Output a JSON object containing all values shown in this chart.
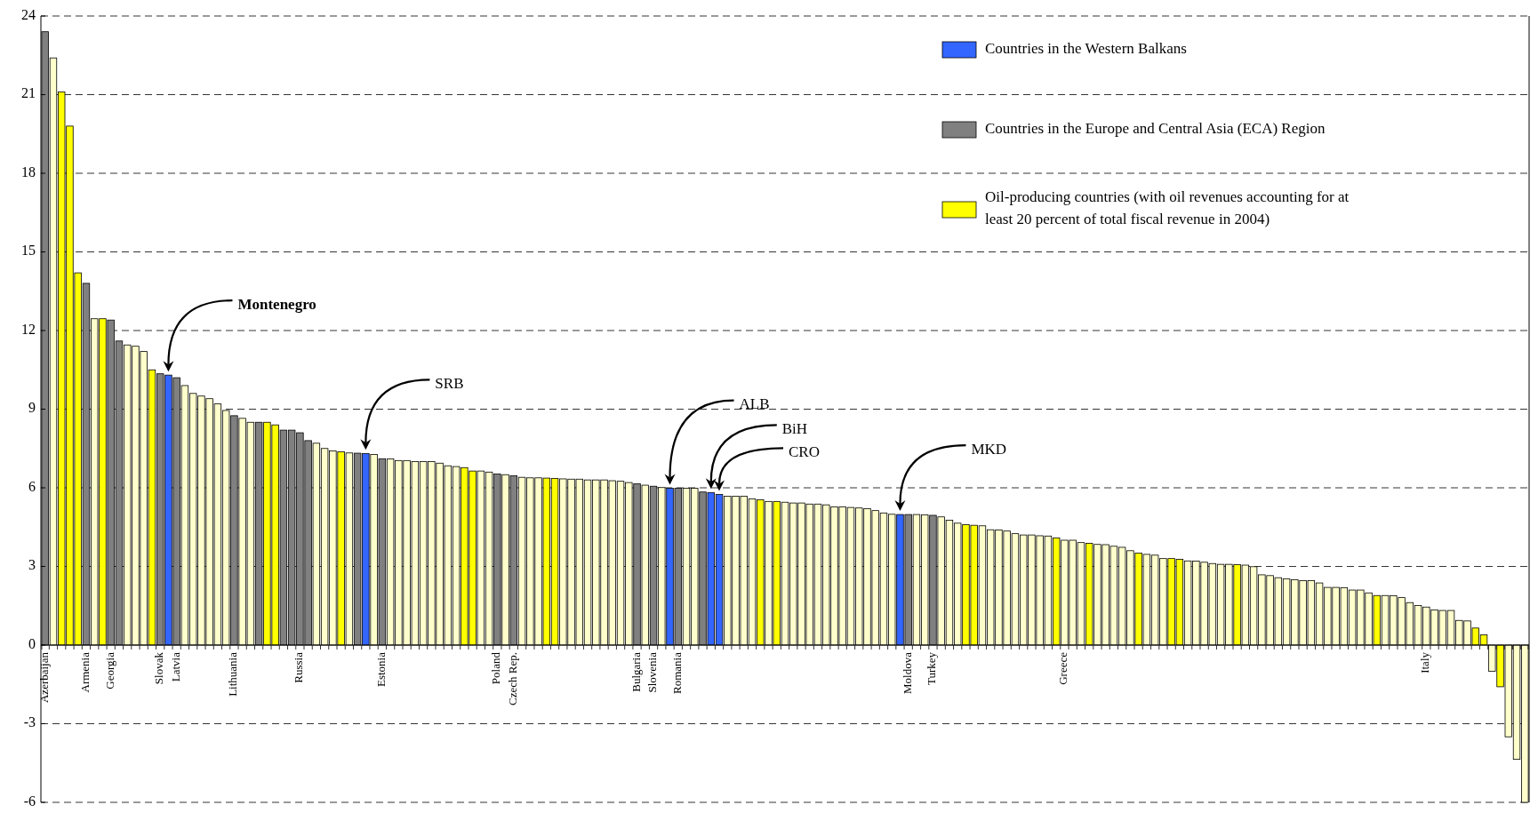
{
  "chart_data": {
    "type": "bar",
    "grid": "y",
    "legend": "top right",
    "ylim": [
      -6,
      24
    ],
    "yticks": [
      -6,
      -3,
      0,
      3,
      6,
      9,
      12,
      15,
      18,
      21,
      24
    ],
    "categories": [
      "Azerbaijan",
      null,
      null,
      null,
      null,
      "Armenia",
      null,
      null,
      "Georgia",
      null,
      null,
      null,
      null,
      null,
      "Slovak",
      null,
      "Latvia",
      null,
      null,
      null,
      null,
      null,
      null,
      "Lithuania",
      null,
      null,
      null,
      null,
      null,
      null,
      null,
      "Russia",
      null,
      null,
      null,
      null,
      null,
      null,
      null,
      null,
      null,
      "Estonia",
      null,
      null,
      null,
      null,
      null,
      null,
      null,
      null,
      null,
      null,
      null,
      null,
      null,
      "Poland",
      null,
      "Czech Rep.",
      null,
      null,
      null,
      null,
      null,
      null,
      null,
      null,
      null,
      null,
      null,
      null,
      null,
      null,
      "Bulgaria",
      null,
      "Slovenia",
      null,
      null,
      "Romania",
      null,
      null,
      null,
      null,
      null,
      null,
      null,
      null,
      null,
      null,
      null,
      null,
      null,
      null,
      null,
      null,
      null,
      null,
      null,
      null,
      null,
      null,
      null,
      null,
      null,
      null,
      null,
      "Moldova",
      null,
      null,
      "Turkey",
      null,
      null,
      null,
      null,
      null,
      null,
      null,
      null,
      null,
      null,
      null,
      null,
      null,
      null,
      null,
      "Greece",
      null,
      null,
      null,
      null,
      null,
      null,
      null,
      null,
      null,
      null,
      null,
      null,
      null,
      null,
      null,
      null,
      null,
      null,
      null,
      null,
      null,
      null,
      null,
      null,
      null,
      null,
      null,
      null,
      null,
      null,
      null,
      null,
      null,
      null,
      null,
      null,
      null,
      null,
      null,
      null,
      null,
      null,
      null,
      "Italy",
      null,
      null,
      null,
      null,
      null,
      null,
      null,
      null,
      null,
      null,
      null,
      null
    ],
    "series": [
      {
        "name": "Countries in the Western Balkans",
        "color": "#3366ff",
        "values": [
          null,
          null,
          null,
          null,
          null,
          null,
          null,
          null,
          null,
          null,
          null,
          null,
          null,
          null,
          null,
          10.3,
          null,
          null,
          null,
          null,
          null,
          null,
          null,
          null,
          null,
          null,
          null,
          null,
          null,
          null,
          null,
          null,
          null,
          null,
          null,
          null,
          null,
          null,
          null,
          7.31,
          null,
          null,
          null,
          null,
          null,
          null,
          null,
          null,
          null,
          null,
          null,
          null,
          null,
          null,
          null,
          null,
          null,
          null,
          null,
          null,
          null,
          null,
          null,
          null,
          null,
          null,
          null,
          null,
          null,
          null,
          null,
          null,
          null,
          null,
          null,
          null,
          5.98,
          null,
          null,
          null,
          null,
          5.82,
          5.75,
          null,
          null,
          null,
          null,
          null,
          null,
          null,
          null,
          null,
          null,
          null,
          null,
          null,
          null,
          null,
          null,
          null,
          null,
          null,
          null,
          null,
          4.98,
          null,
          null,
          null,
          null,
          null,
          null,
          null,
          null,
          null,
          null,
          null,
          null,
          null,
          null,
          null,
          null,
          null,
          null,
          null,
          null,
          null,
          null,
          null,
          null,
          null,
          null,
          null,
          null,
          null,
          null,
          null,
          null,
          null,
          null,
          null,
          null,
          null,
          null,
          null,
          null,
          null,
          null,
          null,
          null,
          null,
          null,
          null,
          null,
          null,
          null,
          null,
          null,
          null,
          null,
          null,
          null,
          null,
          null,
          null,
          null,
          null,
          null,
          null,
          null,
          null,
          null,
          null,
          null,
          null,
          null,
          null,
          null,
          null,
          null,
          null,
          null
        ]
      },
      {
        "name": "Countries in the Europe and Central Asia (ECA) Region",
        "color": "#808080",
        "values": [
          23.4,
          null,
          null,
          null,
          null,
          13.8,
          null,
          null,
          12.4,
          11.6,
          null,
          null,
          null,
          null,
          10.35,
          null,
          10.2,
          null,
          null,
          null,
          null,
          null,
          null,
          8.75,
          null,
          null,
          8.5,
          null,
          null,
          8.2,
          8.2,
          8.1,
          7.8,
          null,
          null,
          null,
          null,
          null,
          7.32,
          null,
          null,
          7.11,
          null,
          null,
          null,
          null,
          null,
          null,
          null,
          null,
          null,
          null,
          null,
          null,
          null,
          6.53,
          null,
          6.46,
          null,
          null,
          null,
          null,
          null,
          null,
          null,
          null,
          null,
          null,
          null,
          null,
          null,
          null,
          6.15,
          null,
          6.06,
          null,
          null,
          5.98,
          null,
          null,
          5.84,
          null,
          null,
          null,
          null,
          null,
          null,
          null,
          null,
          null,
          null,
          null,
          null,
          null,
          null,
          null,
          null,
          null,
          null,
          null,
          null,
          null,
          null,
          null,
          null,
          4.98,
          null,
          null,
          4.95,
          null,
          null,
          null,
          null,
          null,
          null,
          null,
          null,
          null,
          null,
          null,
          null,
          null,
          null,
          null,
          null,
          null,
          null,
          null,
          null,
          null,
          null,
          null,
          null,
          null,
          null,
          null,
          null,
          null,
          null,
          null,
          null,
          null,
          null,
          null,
          null,
          null,
          null,
          null,
          null,
          null,
          null,
          null,
          null,
          null,
          null,
          null,
          null,
          null,
          null,
          null,
          null,
          null,
          null,
          null,
          null,
          null,
          null,
          null,
          null,
          null,
          null,
          null,
          null,
          null,
          null,
          null,
          null,
          null,
          null,
          null,
          null
        ]
      },
      {
        "name": "Oil-producing countries (with oil revenues accounting for at least 20 percent of total fiscal revenue in 2004)",
        "color": "#ffff00",
        "values": [
          null,
          null,
          21.1,
          19.8,
          14.2,
          null,
          null,
          12.45,
          null,
          null,
          null,
          null,
          null,
          10.5,
          null,
          null,
          null,
          null,
          null,
          null,
          null,
          null,
          null,
          null,
          null,
          null,
          null,
          8.5,
          8.4,
          null,
          null,
          null,
          null,
          null,
          null,
          null,
          7.37,
          null,
          null,
          null,
          null,
          null,
          null,
          null,
          null,
          null,
          null,
          null,
          null,
          null,
          null,
          6.77,
          6.64,
          null,
          null,
          null,
          null,
          null,
          null,
          null,
          null,
          6.37,
          6.36,
          null,
          null,
          null,
          null,
          null,
          null,
          null,
          null,
          null,
          null,
          null,
          null,
          null,
          null,
          null,
          null,
          null,
          null,
          null,
          null,
          null,
          null,
          null,
          null,
          5.54,
          null,
          5.48,
          null,
          null,
          null,
          null,
          null,
          null,
          null,
          null,
          null,
          null,
          null,
          null,
          null,
          null,
          null,
          null,
          null,
          null,
          null,
          null,
          null,
          null,
          4.59,
          4.57,
          null,
          null,
          null,
          null,
          null,
          null,
          null,
          null,
          null,
          4.09,
          null,
          null,
          null,
          3.88,
          null,
          null,
          null,
          null,
          null,
          3.51,
          null,
          null,
          null,
          3.3,
          3.27,
          null,
          null,
          null,
          null,
          null,
          null,
          3.07,
          null,
          null,
          null,
          null,
          null,
          null,
          null,
          null,
          null,
          null,
          null,
          null,
          null,
          null,
          null,
          null,
          1.89,
          null,
          null,
          null,
          null,
          null,
          null,
          null,
          null,
          null,
          null,
          null,
          0.65,
          0.39,
          null,
          -1.59,
          null,
          null,
          null
        ]
      },
      {
        "color": "#ffffcc",
        "values": [
          null,
          22.4,
          null,
          null,
          null,
          null,
          12.45,
          null,
          null,
          null,
          11.45,
          11.4,
          11.2,
          null,
          null,
          null,
          null,
          9.9,
          9.6,
          9.5,
          9.4,
          9.2,
          8.95,
          null,
          8.65,
          8.5,
          null,
          null,
          null,
          null,
          null,
          null,
          null,
          7.7,
          7.5,
          7.41,
          null,
          7.33,
          null,
          null,
          7.27,
          null,
          7.1,
          7.04,
          7.04,
          7.0,
          7.0,
          7.0,
          6.94,
          6.84,
          6.81,
          null,
          null,
          6.64,
          6.6,
          null,
          6.5,
          null,
          6.4,
          6.38,
          6.38,
          null,
          null,
          6.34,
          6.33,
          6.33,
          6.3,
          6.3,
          6.3,
          6.27,
          6.25,
          6.2,
          null,
          6.1,
          null,
          6.01,
          null,
          null,
          5.98,
          5.98,
          null,
          null,
          null,
          5.68,
          5.68,
          5.68,
          5.58,
          null,
          5.48,
          null,
          5.45,
          5.42,
          5.42,
          5.38,
          5.38,
          5.35,
          5.27,
          5.27,
          5.25,
          5.23,
          5.2,
          5.13,
          5.04,
          4.99,
          null,
          null,
          4.98,
          4.97,
          null,
          4.89,
          4.76,
          4.65,
          null,
          null,
          4.55,
          4.4,
          4.39,
          4.35,
          4.25,
          4.2,
          4.2,
          4.17,
          4.16,
          null,
          4.0,
          4.0,
          3.91,
          null,
          3.84,
          3.83,
          3.77,
          3.73,
          3.6,
          null,
          3.46,
          3.43,
          3.3,
          null,
          null,
          3.21,
          3.2,
          3.16,
          3.11,
          3.08,
          3.08,
          null,
          3.05,
          2.99,
          2.68,
          2.65,
          2.57,
          2.53,
          2.49,
          2.46,
          2.46,
          2.37,
          2.2,
          2.2,
          2.19,
          2.1,
          2.1,
          1.99,
          null,
          1.89,
          1.88,
          1.81,
          1.62,
          1.51,
          1.45,
          1.34,
          1.32,
          1.32,
          0.94,
          0.92,
          null,
          null,
          -1.0,
          null,
          -3.5,
          -4.36,
          -6
        ]
      }
    ],
    "annotations": [
      "Montenegro",
      "SRB",
      "ALB",
      "BiH",
      "CRO",
      "MKD"
    ]
  }
}
